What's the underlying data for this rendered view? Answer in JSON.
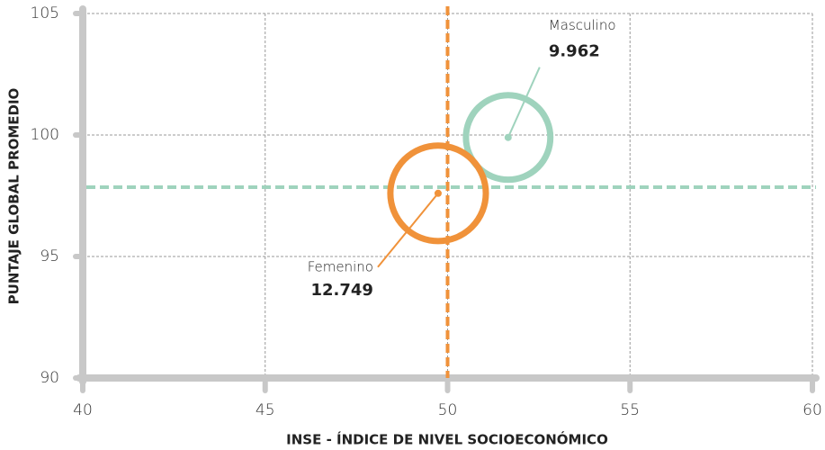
{
  "chart_data": {
    "type": "scatter",
    "xlabel": "INSE - ÍNDICE DE NIVEL SOCIOECONÓMICO",
    "ylabel": "PUNTAJE GLOBAL PROMEDIO",
    "xlim": [
      40,
      60
    ],
    "xticks": [
      40,
      45,
      50,
      55,
      60
    ],
    "ylim": [
      90,
      105
    ],
    "yticks": [
      90,
      95,
      100,
      105
    ],
    "grid": true,
    "vlines": [
      {
        "value": 50,
        "color": "#f0923a"
      }
    ],
    "hlines": [
      {
        "value": 97.85,
        "color": "#9fd3bd"
      }
    ],
    "series": [
      {
        "name": "Masculino",
        "color": "#9fd3bd",
        "x": [
          51.66
        ],
        "values": [
          99.9
        ],
        "sizes": [
          9962
        ],
        "size_labels": [
          "9.962"
        ]
      },
      {
        "name": "Femenino",
        "color": "#f0923a",
        "x": [
          49.74
        ],
        "values": [
          97.6
        ],
        "sizes": [
          12749
        ],
        "size_labels": [
          "12.749"
        ]
      }
    ]
  }
}
